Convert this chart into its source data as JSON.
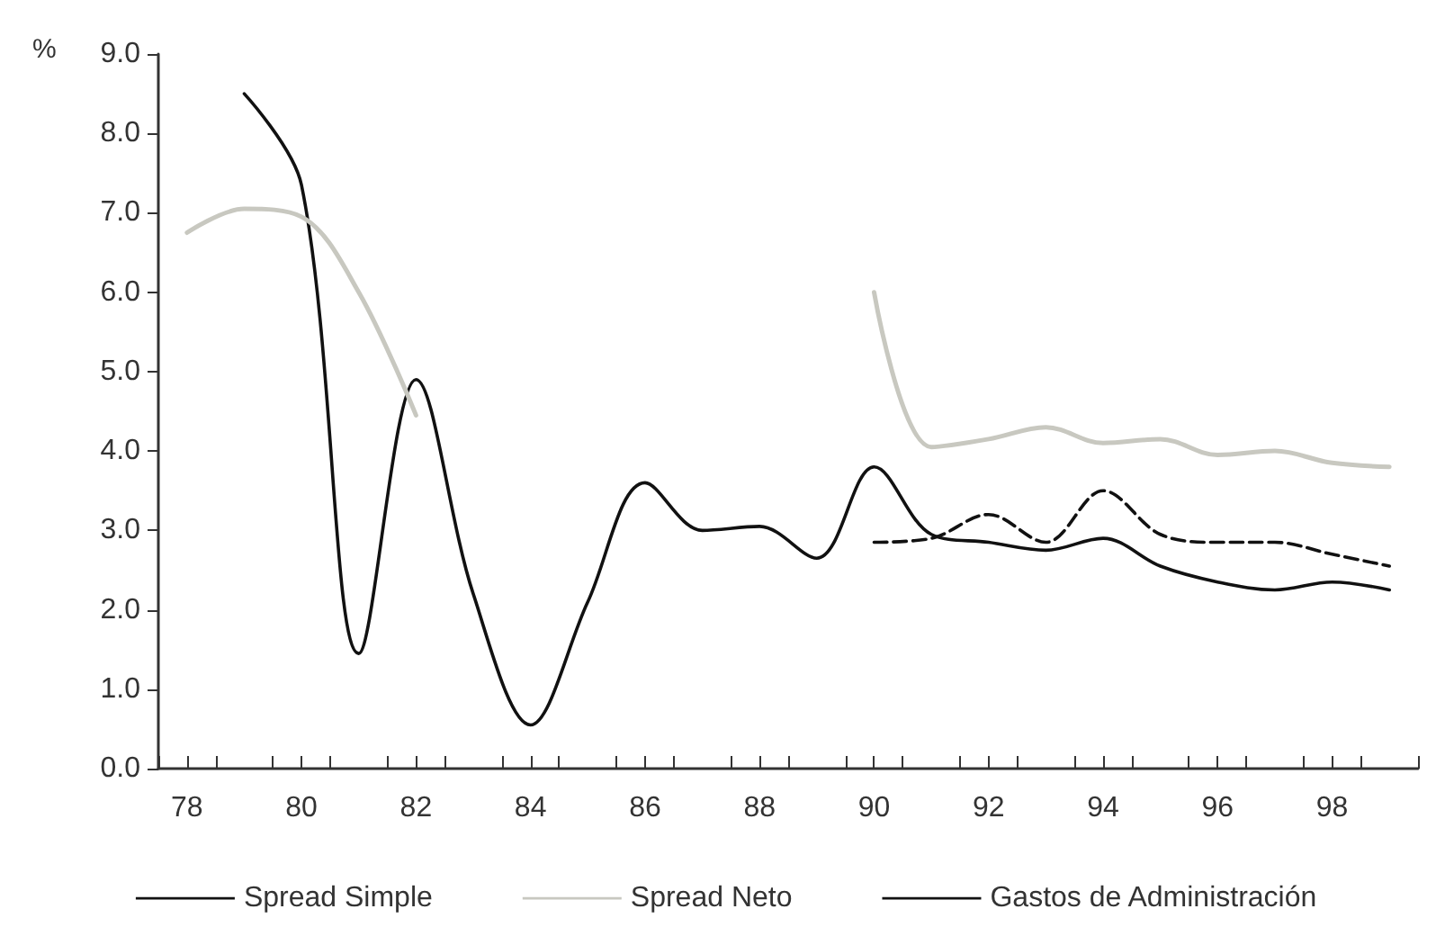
{
  "chart_data": {
    "type": "line",
    "ylabel": "%",
    "x": [
      78,
      79,
      80,
      81,
      82,
      83,
      84,
      85,
      86,
      87,
      88,
      89,
      90,
      91,
      92,
      93,
      94,
      95,
      96,
      97,
      98,
      99
    ],
    "series": [
      {
        "name": "Spread Simple",
        "color": "#111111",
        "line_style": "solid",
        "values": [
          null,
          8.5,
          7.35,
          1.45,
          4.9,
          2.2,
          0.55,
          2.1,
          3.6,
          3.0,
          3.05,
          2.65,
          3.8,
          2.95,
          2.85,
          2.75,
          2.9,
          2.55,
          2.35,
          2.25,
          2.35,
          2.25
        ]
      },
      {
        "name": "Spread Neto",
        "color": "#c8c8c0",
        "line_style": "solid",
        "values": [
          6.75,
          7.05,
          6.95,
          6.0,
          4.45,
          null,
          null,
          null,
          null,
          null,
          null,
          null,
          6.0,
          4.05,
          4.15,
          4.3,
          4.1,
          4.15,
          3.95,
          4.0,
          3.85,
          3.8
        ]
      },
      {
        "name": "Gastos de Administración",
        "color": "#111111",
        "line_style": "dashed",
        "values": [
          null,
          null,
          null,
          null,
          null,
          null,
          null,
          null,
          null,
          null,
          null,
          null,
          2.85,
          2.9,
          3.2,
          2.85,
          3.5,
          2.95,
          2.85,
          2.85,
          2.7,
          2.55
        ]
      }
    ],
    "xlim": [
      77.5,
      99.5
    ],
    "xticks": [
      {
        "value": 77.5,
        "label": null
      },
      {
        "value": 78,
        "label": "78"
      },
      {
        "value": 78.5,
        "label": null
      },
      {
        "value": 79.5,
        "label": null
      },
      {
        "value": 80,
        "label": "80"
      },
      {
        "value": 80.5,
        "label": null
      },
      {
        "value": 81.5,
        "label": null
      },
      {
        "value": 82,
        "label": "82"
      },
      {
        "value": 82.5,
        "label": null
      },
      {
        "value": 83.5,
        "label": null
      },
      {
        "value": 84,
        "label": "84"
      },
      {
        "value": 84.5,
        "label": null
      },
      {
        "value": 85.5,
        "label": null
      },
      {
        "value": 86,
        "label": "86"
      },
      {
        "value": 86.5,
        "label": null
      },
      {
        "value": 87.5,
        "label": null
      },
      {
        "value": 88,
        "label": "88"
      },
      {
        "value": 88.5,
        "label": null
      },
      {
        "value": 89.5,
        "label": null
      },
      {
        "value": 90,
        "label": "90"
      },
      {
        "value": 90.5,
        "label": null
      },
      {
        "value": 91.5,
        "label": null
      },
      {
        "value": 92,
        "label": "92"
      },
      {
        "value": 92.5,
        "label": null
      },
      {
        "value": 93.5,
        "label": null
      },
      {
        "value": 94,
        "label": "94"
      },
      {
        "value": 94.5,
        "label": null
      },
      {
        "value": 95.5,
        "label": null
      },
      {
        "value": 96,
        "label": "96"
      },
      {
        "value": 96.5,
        "label": null
      },
      {
        "value": 97.5,
        "label": null
      },
      {
        "value": 98,
        "label": "98"
      },
      {
        "value": 98.5,
        "label": null
      },
      {
        "value": 99.5,
        "label": null
      }
    ],
    "ylim": [
      0,
      9
    ],
    "yticks": [
      {
        "value": 0,
        "label": "0.0"
      },
      {
        "value": 1,
        "label": "1.0"
      },
      {
        "value": 2,
        "label": "2.0"
      },
      {
        "value": 3,
        "label": "3.0"
      },
      {
        "value": 4,
        "label": "4.0"
      },
      {
        "value": 5,
        "label": "5.0"
      },
      {
        "value": 6,
        "label": "6.0"
      },
      {
        "value": 7,
        "label": "7.0"
      },
      {
        "value": 8,
        "label": "8.0"
      },
      {
        "value": 9,
        "label": "9.0"
      }
    ],
    "grid": false,
    "legend": "bottom",
    "marker": "none"
  }
}
